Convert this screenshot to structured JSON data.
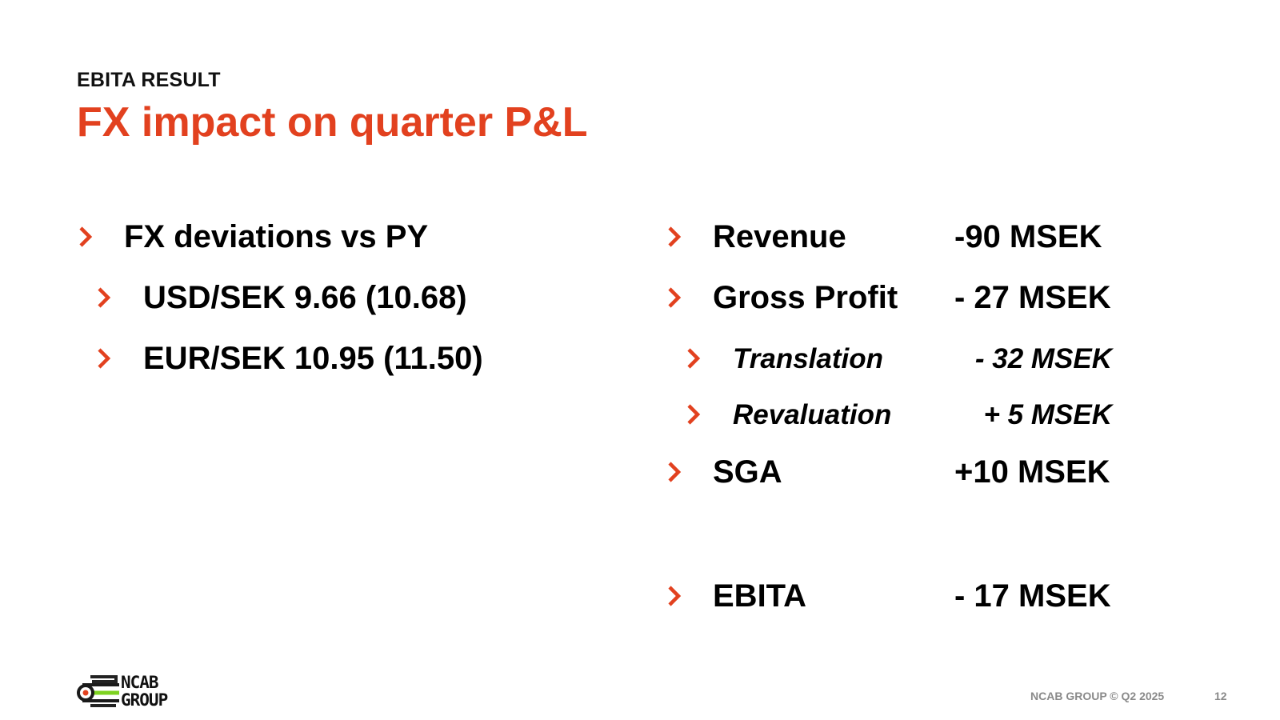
{
  "slide": {
    "kicker": "EBITA RESULT",
    "title": "FX impact on quarter P&L",
    "accent_color": "#e2411f"
  },
  "left": {
    "heading": "FX deviations vs PY",
    "rates": [
      "USD/SEK 9.66 (10.68)",
      "EUR/SEK 10.95 (11.50)"
    ]
  },
  "right": {
    "rows": [
      {
        "label": "Revenue",
        "value": "-90 MSEK"
      },
      {
        "label": "Gross Profit",
        "value": "- 27 MSEK"
      },
      {
        "label": "Translation",
        "value": "- 32 MSEK"
      },
      {
        "label": "Revaluation",
        "value": "+ 5 MSEK"
      },
      {
        "label": "SGA",
        "value": "+10 MSEK"
      },
      {
        "label": "EBITA",
        "value": "- 17 MSEK"
      }
    ]
  },
  "footer": {
    "logo_line1": "NCAB",
    "logo_line2": "GROUP",
    "copyright": "NCAB GROUP © Q2 2025",
    "page_number": "12",
    "icons": [
      "chevron-right-icon",
      "ncab-logo-icon"
    ]
  }
}
